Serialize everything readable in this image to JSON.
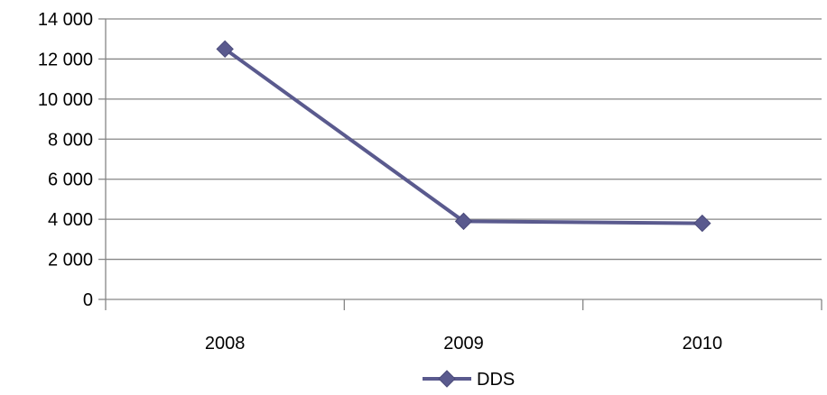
{
  "chart_data": {
    "type": "line",
    "categories": [
      "2008",
      "2009",
      "2010"
    ],
    "series": [
      {
        "name": "DDS",
        "values": [
          12500,
          3900,
          3800
        ],
        "color": "#5a5a8e",
        "marker": "diamond"
      }
    ],
    "y_ticks": [
      "0",
      "2 000",
      "4 000",
      "6 000",
      "8 000",
      "10 000",
      "12 000",
      "14 000"
    ],
    "ylim": [
      0,
      14000
    ],
    "grid": true,
    "legend": "bottom"
  }
}
